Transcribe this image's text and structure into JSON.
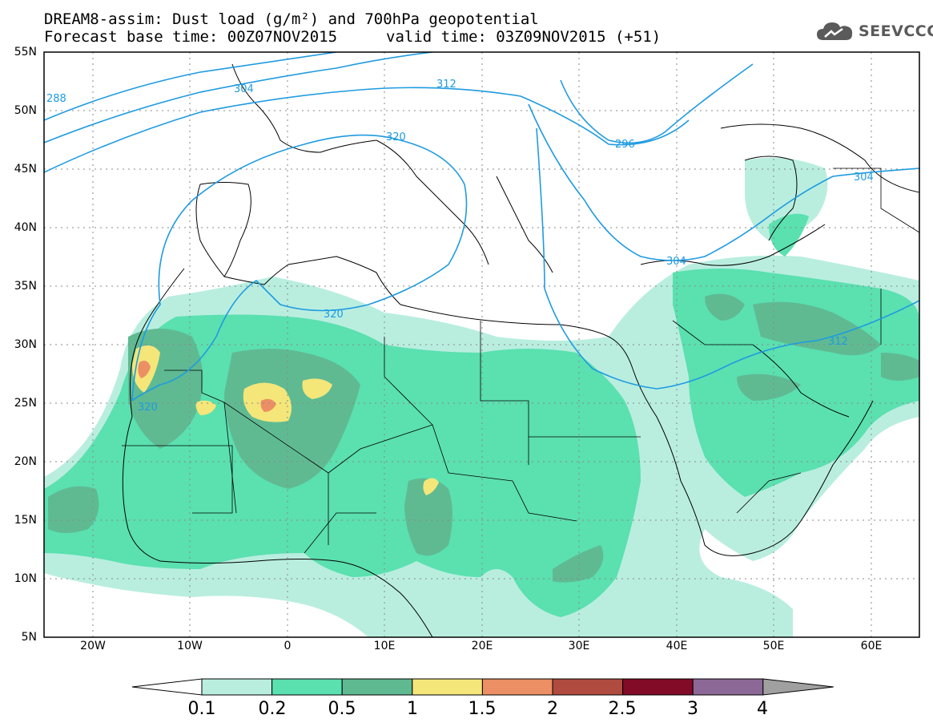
{
  "title": {
    "line1": "DREAM8-assim: Dust load (g/m²) and 700hPa geopotential",
    "line2_left": "Forecast base time: 00Z07NOV2015",
    "line2_right": "valid time: 03Z09NOV2015 (+51)"
  },
  "logo": {
    "text": "SEEVCCC",
    "icon": "cloud-icon"
  },
  "map": {
    "lat_labels": [
      "55N",
      "50N",
      "45N",
      "40N",
      "35N",
      "30N",
      "25N",
      "20N",
      "15N",
      "10N",
      "5N"
    ],
    "lon_labels": [
      "20W",
      "10W",
      "0",
      "10E",
      "20E",
      "30E",
      "40E",
      "50E",
      "60E"
    ],
    "contour_labels": [
      "288",
      "304",
      "312",
      "320",
      "320",
      "320",
      "296",
      "304",
      "304",
      "312"
    ]
  },
  "colorbar": {
    "ticks": [
      "0.1",
      "0.2",
      "0.5",
      "1",
      "1.5",
      "2",
      "2.5",
      "3",
      "4"
    ],
    "colors": [
      "#b9eedf",
      "#5be0b0",
      "#5fba92",
      "#f5e67a",
      "#ec8f64",
      "#b04b3f",
      "#820b27",
      "#8c6896",
      "#a0a0a0"
    ]
  }
}
